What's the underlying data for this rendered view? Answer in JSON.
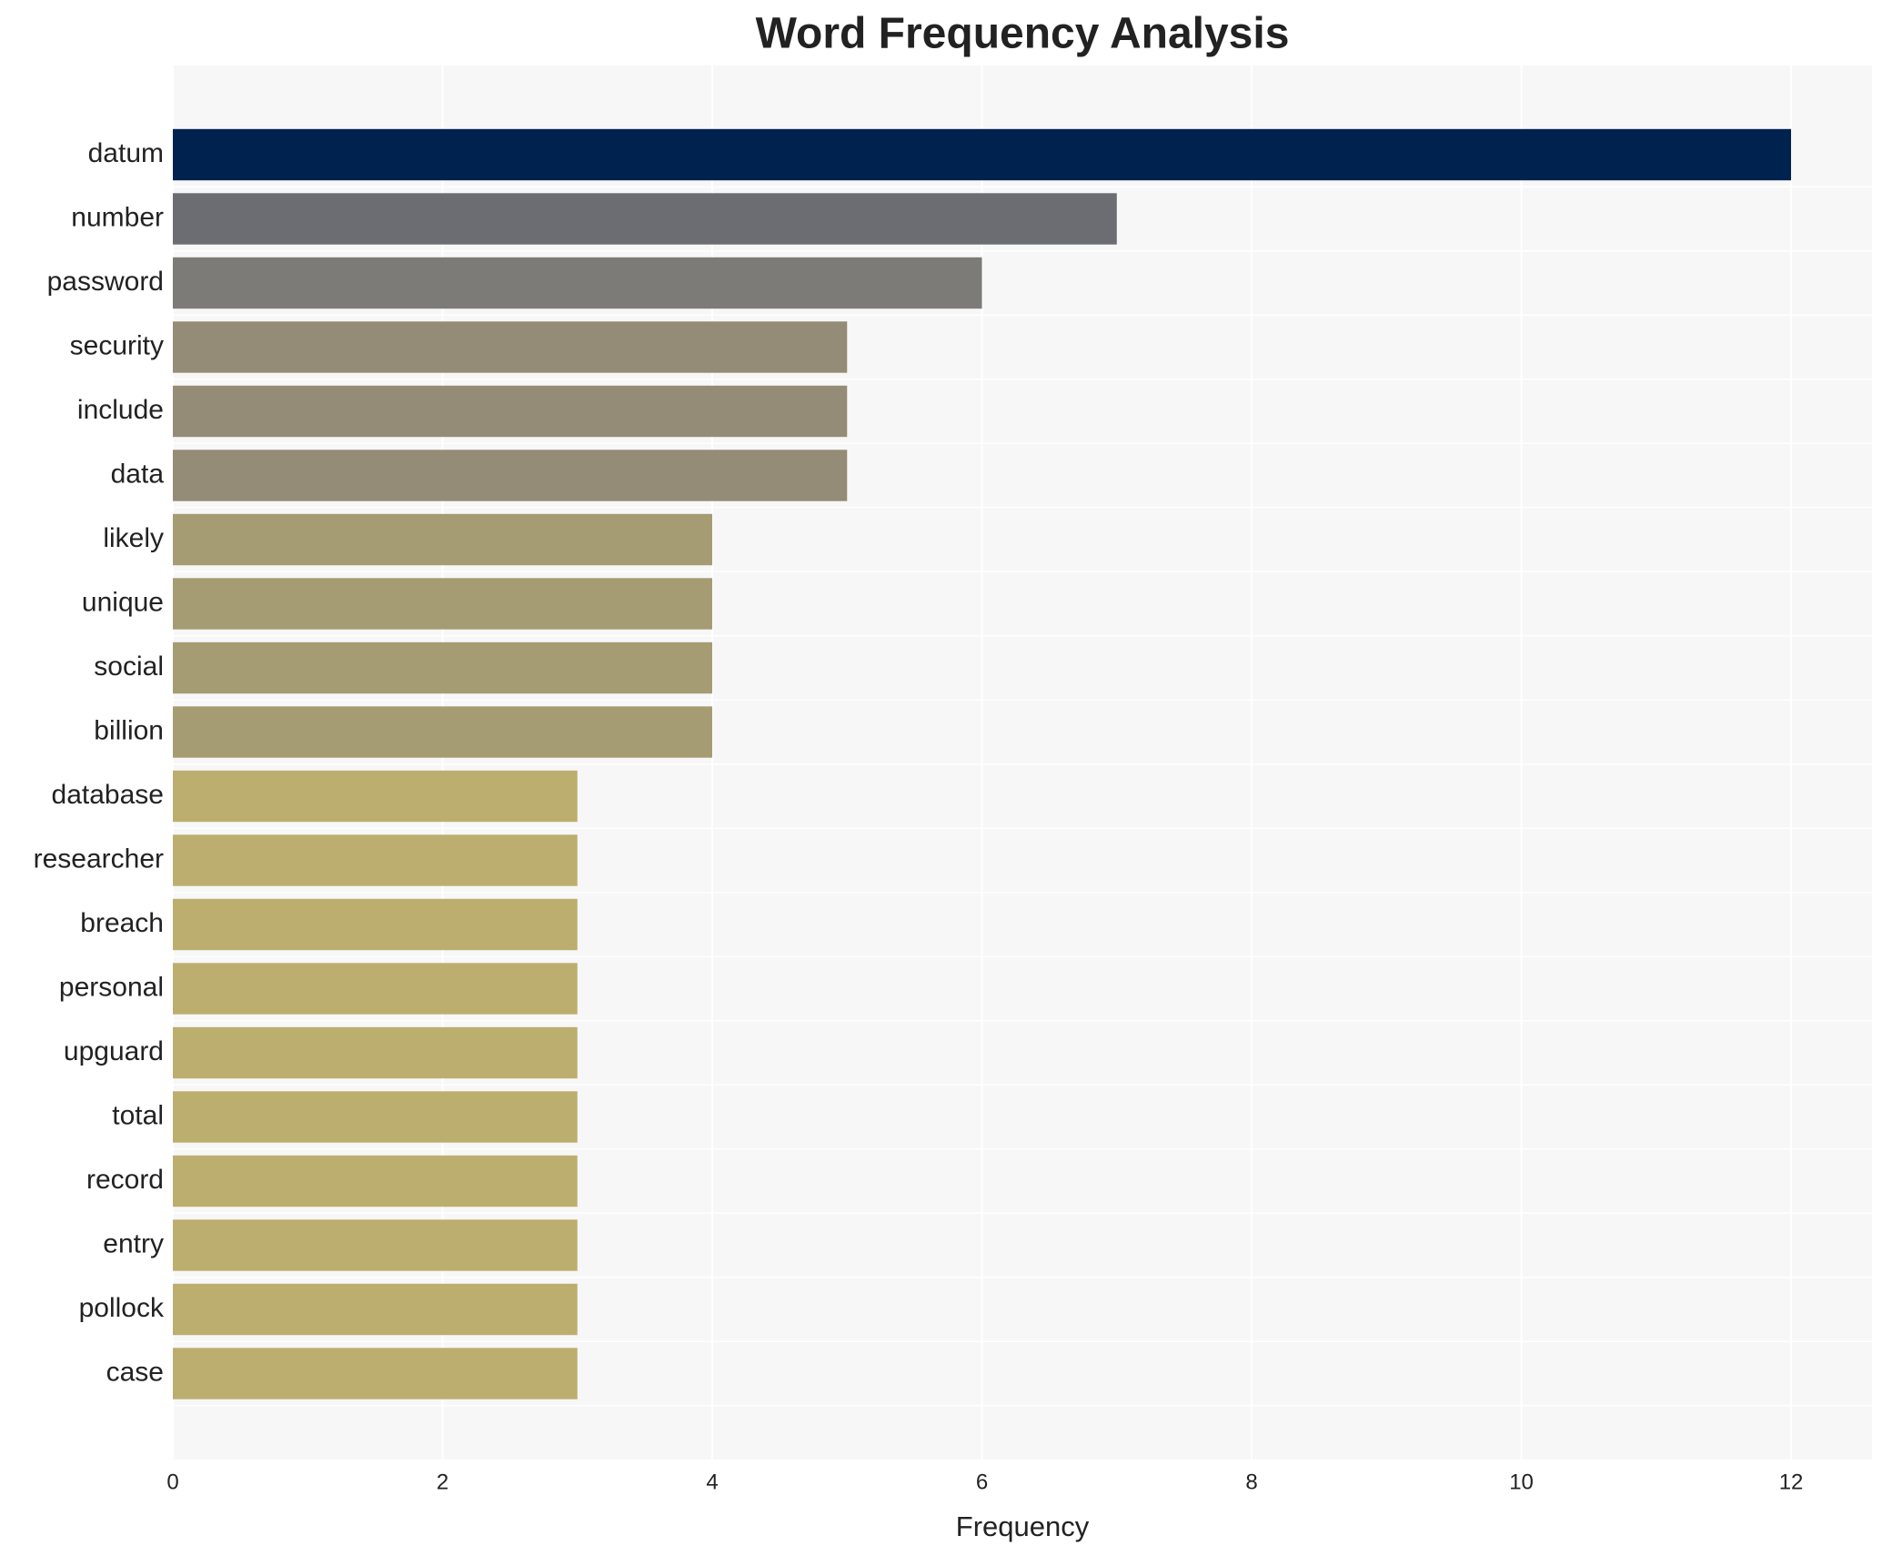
{
  "chart_data": {
    "type": "hbar",
    "title": "Word Frequency Analysis",
    "x_label": "Frequency",
    "categories": [
      "datum",
      "number",
      "password",
      "security",
      "include",
      "data",
      "likely",
      "unique",
      "social",
      "billion",
      "database",
      "researcher",
      "breach",
      "personal",
      "upguard",
      "total",
      "record",
      "entry",
      "pollock",
      "case"
    ],
    "values": [
      12,
      7,
      6,
      5,
      5,
      5,
      4,
      4,
      4,
      4,
      3,
      3,
      3,
      3,
      3,
      3,
      3,
      3,
      3,
      3
    ],
    "colors": [
      "#00224e",
      "#6b6d72",
      "#7c7b77",
      "#948c76",
      "#948c76",
      "#948c76",
      "#a59c74",
      "#a59c74",
      "#a59c74",
      "#a59c74",
      "#bcae6f",
      "#bcae6f",
      "#bcae6f",
      "#bcae6f",
      "#bcae6f",
      "#bcae6f",
      "#bcae6f",
      "#bcae6f",
      "#bcae6f",
      "#bcae6f"
    ],
    "xlim": [
      0,
      12.6
    ],
    "xticks": [
      0,
      2,
      4,
      6,
      8,
      10,
      12
    ],
    "grid": true
  }
}
